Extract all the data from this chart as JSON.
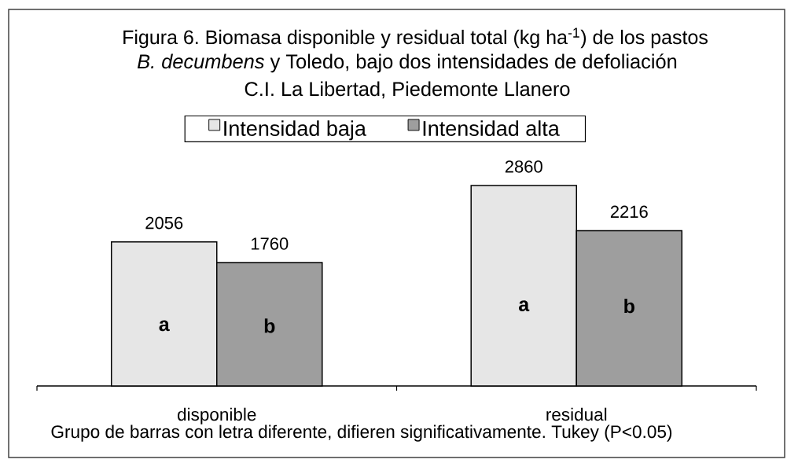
{
  "chart_data": {
    "type": "bar",
    "title": "Figura 6. Biomasa disponible y residual total (kg ha$^{-1}$) de los pastos",
    "subtitle": "*B. decumbens* y Toledo, bajo dos intensidades de defoliación C.I. La Libertad, Piedemonte Llanero",
    "categories": [
      "disponible",
      "residual"
    ],
    "series": [
      {
        "name": "Intensidad baja",
        "color": "#e6e6e6",
        "values": [
          2056,
          2860
        ]
      },
      {
        "name": "Intensidad alta",
        "color": "#9e9e9e",
        "values": [
          1760,
          2216
        ]
      }
    ],
    "tick_labels": "x",
    "data_labels": true,
    "legend": "top",
    "annotations": [
      "a",
      "b",
      "a",
      "b",
      "Grupo de barras con letra diferente, difieren significativamente. Tukey (P<0.05)"
    ]
  }
}
